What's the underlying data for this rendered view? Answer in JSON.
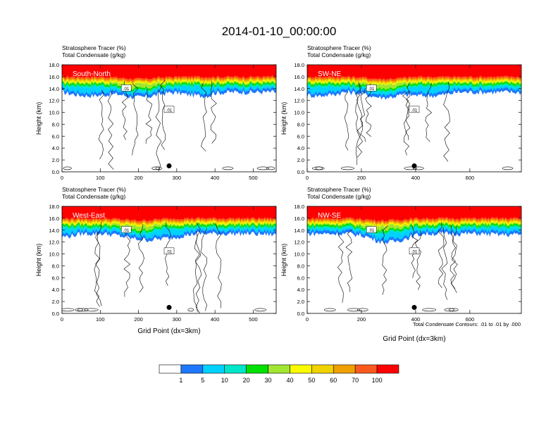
{
  "title": "2014-01-10_00:00:00",
  "panel_header": {
    "line1": "Stratosphere Tracer   (%)",
    "line2": "Total Condensate   (g/kg)"
  },
  "ylabel": "Height (km)",
  "xlabel": "Grid Point (dx=3km)",
  "contour_note": "Total Condensate Contours: .01 to .01 by .000",
  "contour_label": ".01",
  "colors": {
    "bins": [
      "#ffffff",
      "#1e78ff",
      "#00d2ff",
      "#00e6c8",
      "#00e100",
      "#a0e632",
      "#fafa00",
      "#f0d200",
      "#f0a000",
      "#fa5a1e",
      "#ff0000"
    ],
    "line": "#000000"
  },
  "colorbar": {
    "labels": [
      "1",
      "5",
      "10",
      "20",
      "30",
      "40",
      "50",
      "60",
      "70",
      "100"
    ]
  },
  "chart_data": [
    {
      "type": "heatmap",
      "label": "South-North",
      "xlim": [
        0,
        560
      ],
      "ylim": [
        0,
        18
      ],
      "xticks": [
        "0",
        "100",
        "200",
        "300",
        "400",
        "500"
      ],
      "yticks": [
        "0.0",
        "2.0",
        "4.0",
        "6.0",
        "8.0",
        "10.0",
        "12.0",
        "14.0",
        "16.0",
        "18.0"
      ],
      "marker_x": 280,
      "marker_y": 1.0
    },
    {
      "type": "heatmap",
      "label": "SW-NE",
      "xlim": [
        0,
        790
      ],
      "ylim": [
        0,
        18
      ],
      "xticks": [
        "0",
        "200",
        "400",
        "600"
      ],
      "yticks": [
        "0.0",
        "2.0",
        "4.0",
        "6.0",
        "8.0",
        "10.0",
        "12.0",
        "14.0",
        "16.0",
        "18.0"
      ],
      "marker_x": 395,
      "marker_y": 1.0
    },
    {
      "type": "heatmap",
      "label": "West-East",
      "xlim": [
        0,
        560
      ],
      "ylim": [
        0,
        18
      ],
      "xticks": [
        "0",
        "100",
        "200",
        "300",
        "400",
        "500"
      ],
      "yticks": [
        "0.0",
        "2.0",
        "4.0",
        "6.0",
        "8.0",
        "10.0",
        "12.0",
        "14.0",
        "16.0",
        "18.0"
      ],
      "marker_x": 280,
      "marker_y": 1.0
    },
    {
      "type": "heatmap",
      "label": "NW-SE",
      "xlim": [
        0,
        790
      ],
      "ylim": [
        0,
        18
      ],
      "xticks": [
        "0",
        "200",
        "400",
        "600"
      ],
      "yticks": [
        "0.0",
        "2.0",
        "4.0",
        "6.0",
        "8.0",
        "10.0",
        "12.0",
        "14.0",
        "16.0",
        "18.0"
      ],
      "marker_x": 395,
      "marker_y": 1.0
    }
  ]
}
